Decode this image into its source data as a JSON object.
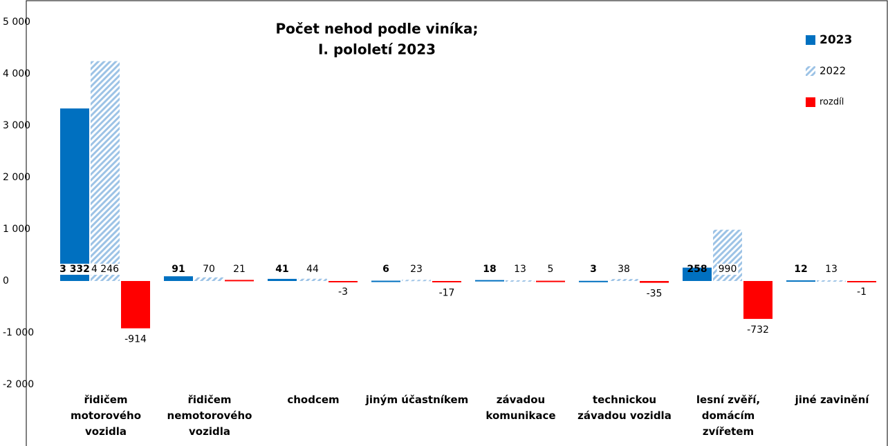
{
  "chart_data": {
    "type": "bar",
    "title": [
      "Počet nehod podle viníka;",
      "I. pololetí 2023"
    ],
    "categories": [
      "řidičem motorového vozidla",
      "řidičem nemotorového vozidla",
      "chodcem",
      "jiným účastníkem",
      "závadou komunikace",
      "technickou závadou vozidla",
      "lesní zvěří, domácím zvířetem",
      "jiné zavinění"
    ],
    "series": [
      {
        "name": "2023",
        "color": "#0070c0",
        "values": [
          3332,
          91,
          41,
          6,
          18,
          3,
          258,
          12
        ],
        "value_labels": [
          "3 332",
          "91",
          "41",
          "6",
          "18",
          "3",
          "258",
          "12"
        ]
      },
      {
        "name": "2022",
        "color": "#9dc3e6",
        "pattern": "hatch",
        "values": [
          4246,
          70,
          44,
          23,
          13,
          38,
          990,
          13
        ],
        "value_labels": [
          "4 246",
          "70",
          "44",
          "23",
          "13",
          "38",
          "990",
          "13"
        ]
      },
      {
        "name": "rozdíl",
        "color": "#ff0000",
        "values": [
          -914,
          21,
          -3,
          -17,
          5,
          -35,
          -732,
          -1
        ],
        "value_labels": [
          "-914",
          "21",
          "-3",
          "-17",
          "5",
          "-35",
          "-732",
          "-1"
        ]
      }
    ],
    "ylim": [
      -2000,
      5000
    ],
    "yticks": [
      {
        "value": -2000,
        "label": "-2 000"
      },
      {
        "value": -1000,
        "label": "-1 000"
      },
      0,
      {
        "value": 1000,
        "label": "1 000"
      },
      {
        "value": 2000,
        "label": "2 000"
      },
      {
        "value": 3000,
        "label": "3 000"
      },
      {
        "value": 4000,
        "label": "4 000"
      },
      {
        "value": 5000,
        "label": "5 000"
      }
    ],
    "grid": false,
    "legend": "top-right"
  }
}
